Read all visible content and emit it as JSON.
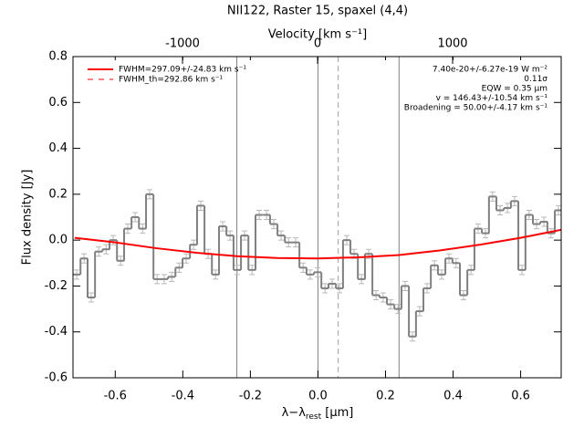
{
  "chart_data": {
    "type": "step",
    "title": "NII122, Raster 15, spaxel (4,4)",
    "xlabel": {
      "main": "λ−λ",
      "sub": "rest",
      "unit": " [μm]"
    },
    "x2label": "Velocity [km s⁻¹]",
    "ylabel": "Flux density [Jy]",
    "color": "#808080",
    "x": [
      -0.714,
      -0.692,
      -0.671,
      -0.649,
      -0.627,
      -0.606,
      -0.584,
      -0.563,
      -0.541,
      -0.519,
      -0.498,
      -0.476,
      -0.455,
      -0.433,
      -0.411,
      -0.39,
      -0.368,
      -0.347,
      -0.325,
      -0.303,
      -0.282,
      -0.26,
      -0.239,
      -0.217,
      -0.195,
      -0.174,
      -0.152,
      -0.131,
      -0.109,
      -0.087,
      -0.066,
      -0.044,
      -0.023,
      -0.001,
      0.021,
      0.042,
      0.064,
      0.085,
      0.107,
      0.129,
      0.15,
      0.172,
      0.193,
      0.215,
      0.237,
      0.258,
      0.28,
      0.301,
      0.323,
      0.345,
      0.366,
      0.388,
      0.409,
      0.431,
      0.453,
      0.474,
      0.496,
      0.517,
      0.539,
      0.561,
      0.582,
      0.604,
      0.625,
      0.647,
      0.669,
      0.69,
      0.712
    ],
    "values": [
      -0.15,
      -0.08,
      -0.25,
      -0.05,
      -0.04,
      0.0,
      -0.09,
      0.05,
      0.1,
      0.05,
      0.2,
      -0.17,
      -0.17,
      -0.16,
      -0.12,
      -0.08,
      -0.02,
      0.15,
      -0.06,
      -0.15,
      0.06,
      0.02,
      -0.13,
      0.02,
      -0.13,
      0.11,
      0.11,
      0.07,
      0.02,
      -0.01,
      -0.01,
      -0.12,
      -0.15,
      -0.14,
      -0.21,
      -0.19,
      -0.21,
      0.0,
      -0.06,
      -0.17,
      -0.06,
      -0.24,
      -0.25,
      -0.28,
      -0.3,
      -0.2,
      -0.42,
      -0.31,
      -0.21,
      -0.11,
      -0.15,
      -0.08,
      -0.1,
      -0.24,
      -0.13,
      0.05,
      0.03,
      0.19,
      0.13,
      0.14,
      0.17,
      -0.13,
      0.11,
      0.07,
      0.08,
      0.03,
      0.13
    ],
    "bin_width": 0.0216,
    "error": 0.02,
    "fit": {
      "name": "FWHM=297.09+/-24.83 km s⁻¹",
      "color": "#ff0000",
      "x": [
        -0.72,
        -0.6,
        -0.48,
        -0.36,
        -0.24,
        -0.12,
        0,
        0.12,
        0.24,
        0.36,
        0.48,
        0.6,
        0.72
      ],
      "values": [
        0.01,
        -0.01,
        -0.035,
        -0.055,
        -0.07,
        -0.078,
        -0.08,
        -0.075,
        -0.065,
        -0.045,
        -0.02,
        0.01,
        0.045
      ]
    },
    "fit_th_name": "FWHM_th=292.86 km s⁻¹",
    "vlines": [
      -0.24,
      0,
      0.24
    ],
    "vline_dashed": 0.06,
    "annotations": [
      "7.40e-20+/-6.27e-19 W m⁻²",
      "0.11σ",
      "EQW = 0.35 μm",
      "v = 146.43+/-10.54 km s⁻¹",
      "Broadening = 50.00+/-4.17 km s⁻¹"
    ],
    "xlim": [
      -0.725,
      0.72
    ],
    "xticks": [
      -0.6,
      -0.4,
      -0.2,
      {
        "value": 0,
        "label": "0.0"
      },
      0.2,
      0.4,
      0.6
    ],
    "x2lim": [
      -1811,
      1804
    ],
    "x2ticks": [
      -1000,
      0,
      1000
    ],
    "ylim": [
      -0.6,
      0.8
    ],
    "yticks": [
      -0.6,
      -0.4,
      -0.2,
      {
        "value": 0,
        "label": "0.0"
      },
      0.2,
      0.4,
      0.6,
      0.8
    ]
  }
}
